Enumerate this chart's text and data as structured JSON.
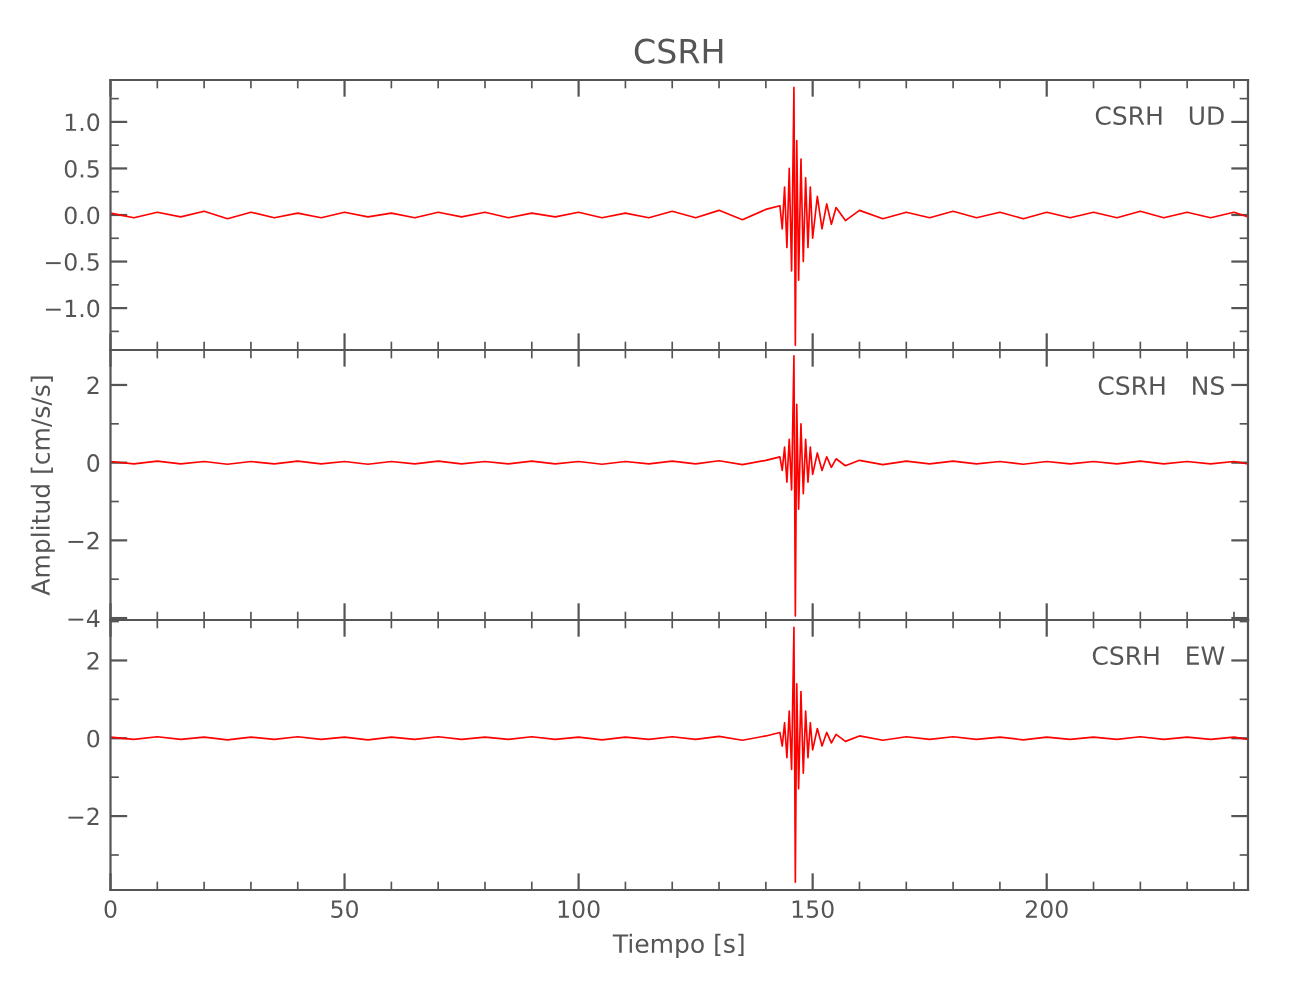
{
  "chart_data": [
    {
      "type": "line",
      "title": "CSRH",
      "annotations": [
        "CSRH   UD"
      ],
      "tick_labels": "y",
      "xlim": [
        0,
        243
      ],
      "xticks": [
        0,
        50,
        100,
        150,
        200
      ],
      "ylim": [
        -1.45,
        1.45
      ],
      "yticks": [
        {
          "value": 1,
          "label": "1.0"
        },
        {
          "value": 0.5,
          "label": "0.5"
        },
        {
          "value": 0,
          "label": "0.0"
        },
        {
          "value": -0.5,
          "label": "−0.5"
        },
        {
          "value": -1,
          "label": "−1.0"
        }
      ],
      "grid": false,
      "marker": "none",
      "line_style": "solid",
      "series": [
        {
          "color": "#ff0000",
          "x": [
            0,
            5,
            10,
            15,
            20,
            25,
            30,
            35,
            40,
            45,
            50,
            55,
            60,
            65,
            70,
            75,
            80,
            85,
            90,
            95,
            100,
            105,
            110,
            115,
            120,
            125,
            130,
            135,
            140,
            143,
            143.5,
            144,
            144.5,
            145,
            145.5,
            146,
            146.3,
            146.6,
            147,
            147.5,
            148,
            148.5,
            149,
            149.5,
            150,
            151,
            152,
            153,
            154,
            155,
            157,
            160,
            165,
            170,
            175,
            180,
            185,
            190,
            195,
            200,
            205,
            210,
            215,
            220,
            225,
            230,
            235,
            240,
            243
          ],
          "values": [
            0.02,
            -0.03,
            0.03,
            -0.02,
            0.04,
            -0.04,
            0.03,
            -0.03,
            0.02,
            -0.03,
            0.03,
            -0.02,
            0.02,
            -0.03,
            0.03,
            -0.02,
            0.03,
            -0.03,
            0.02,
            -0.02,
            0.03,
            -0.03,
            0.02,
            -0.03,
            0.04,
            -0.03,
            0.05,
            -0.05,
            0.06,
            0.1,
            -0.15,
            0.3,
            -0.35,
            0.5,
            -0.6,
            1.37,
            -1.4,
            0.8,
            -0.7,
            0.6,
            -0.5,
            0.4,
            -0.35,
            0.3,
            -0.25,
            0.2,
            -0.15,
            0.12,
            -0.1,
            0.08,
            -0.06,
            0.05,
            -0.04,
            0.03,
            -0.03,
            0.04,
            -0.03,
            0.03,
            -0.04,
            0.03,
            -0.03,
            0.03,
            -0.03,
            0.04,
            -0.03,
            0.03,
            -0.03,
            0.03,
            -0.02
          ]
        }
      ]
    },
    {
      "type": "line",
      "ylabel": "Amplitud [cm/s/s]",
      "annotations": [
        "CSRH   NS"
      ],
      "tick_labels": "y",
      "xlim": [
        0,
        243
      ],
      "xticks": [
        0,
        50,
        100,
        150,
        200
      ],
      "ylim": [
        -4.05,
        2.9
      ],
      "yticks": [
        2,
        0,
        {
          "value": -2,
          "label": "−2"
        },
        {
          "value": -4,
          "label": "−4"
        }
      ],
      "grid": false,
      "marker": "none",
      "line_style": "solid",
      "series": [
        {
          "color": "#ff0000",
          "x": [
            0,
            5,
            10,
            15,
            20,
            25,
            30,
            35,
            40,
            45,
            50,
            55,
            60,
            65,
            70,
            75,
            80,
            85,
            90,
            95,
            100,
            105,
            110,
            115,
            120,
            125,
            130,
            135,
            140,
            143,
            143.5,
            144,
            144.5,
            145,
            145.5,
            146,
            146.3,
            146.6,
            147,
            147.5,
            148,
            148.5,
            149,
            149.5,
            150,
            151,
            152,
            153,
            154,
            155,
            157,
            160,
            165,
            170,
            175,
            180,
            185,
            190,
            195,
            200,
            205,
            210,
            215,
            220,
            225,
            230,
            235,
            240,
            243
          ],
          "values": [
            0.03,
            -0.03,
            0.04,
            -0.03,
            0.03,
            -0.04,
            0.03,
            -0.03,
            0.04,
            -0.03,
            0.03,
            -0.04,
            0.03,
            -0.03,
            0.04,
            -0.03,
            0.03,
            -0.03,
            0.04,
            -0.03,
            0.03,
            -0.04,
            0.03,
            -0.03,
            0.04,
            -0.03,
            0.05,
            -0.05,
            0.06,
            0.15,
            -0.2,
            0.4,
            -0.5,
            0.6,
            -0.7,
            2.75,
            -3.95,
            1.5,
            -1.2,
            1.0,
            -0.8,
            0.6,
            -0.5,
            0.4,
            -0.3,
            0.25,
            -0.2,
            0.15,
            -0.12,
            0.1,
            -0.08,
            0.06,
            -0.05,
            0.04,
            -0.03,
            0.04,
            -0.03,
            0.03,
            -0.04,
            0.03,
            -0.03,
            0.03,
            -0.03,
            0.04,
            -0.03,
            0.03,
            -0.03,
            0.03,
            -0.03
          ]
        }
      ]
    },
    {
      "type": "line",
      "xlabel": "Tiempo [s]",
      "annotations": [
        "CSRH   EW"
      ],
      "xlim": [
        0,
        243
      ],
      "xticks": [
        0,
        50,
        100,
        150,
        200
      ],
      "ylim": [
        -3.9,
        3.04
      ],
      "yticks": [
        2,
        0,
        {
          "value": -2,
          "label": "−2"
        }
      ],
      "grid": false,
      "marker": "none",
      "line_style": "solid",
      "series": [
        {
          "color": "#ff0000",
          "x": [
            0,
            5,
            10,
            15,
            20,
            25,
            30,
            35,
            40,
            45,
            50,
            55,
            60,
            65,
            70,
            75,
            80,
            85,
            90,
            95,
            100,
            105,
            110,
            115,
            120,
            125,
            130,
            135,
            140,
            143,
            143.5,
            144,
            144.5,
            145,
            145.5,
            146,
            146.3,
            146.6,
            147,
            147.5,
            148,
            148.5,
            149,
            149.5,
            150,
            151,
            152,
            153,
            154,
            155,
            157,
            160,
            165,
            170,
            175,
            180,
            185,
            190,
            195,
            200,
            205,
            210,
            215,
            220,
            225,
            230,
            235,
            240,
            243
          ],
          "values": [
            0.03,
            -0.03,
            0.04,
            -0.03,
            0.03,
            -0.04,
            0.03,
            -0.03,
            0.04,
            -0.03,
            0.03,
            -0.04,
            0.03,
            -0.03,
            0.04,
            -0.03,
            0.03,
            -0.03,
            0.04,
            -0.03,
            0.03,
            -0.04,
            0.03,
            -0.03,
            0.04,
            -0.03,
            0.05,
            -0.05,
            0.06,
            0.15,
            -0.2,
            0.4,
            -0.5,
            0.7,
            -0.8,
            2.85,
            -3.7,
            1.4,
            -1.3,
            1.2,
            -0.9,
            0.7,
            -0.5,
            0.4,
            -0.3,
            0.25,
            -0.2,
            0.15,
            -0.12,
            0.1,
            -0.08,
            0.06,
            -0.05,
            0.04,
            -0.03,
            0.04,
            -0.03,
            0.03,
            -0.04,
            0.03,
            -0.03,
            0.03,
            -0.03,
            0.04,
            -0.03,
            0.03,
            -0.03,
            0.03,
            -0.03
          ]
        }
      ]
    }
  ]
}
